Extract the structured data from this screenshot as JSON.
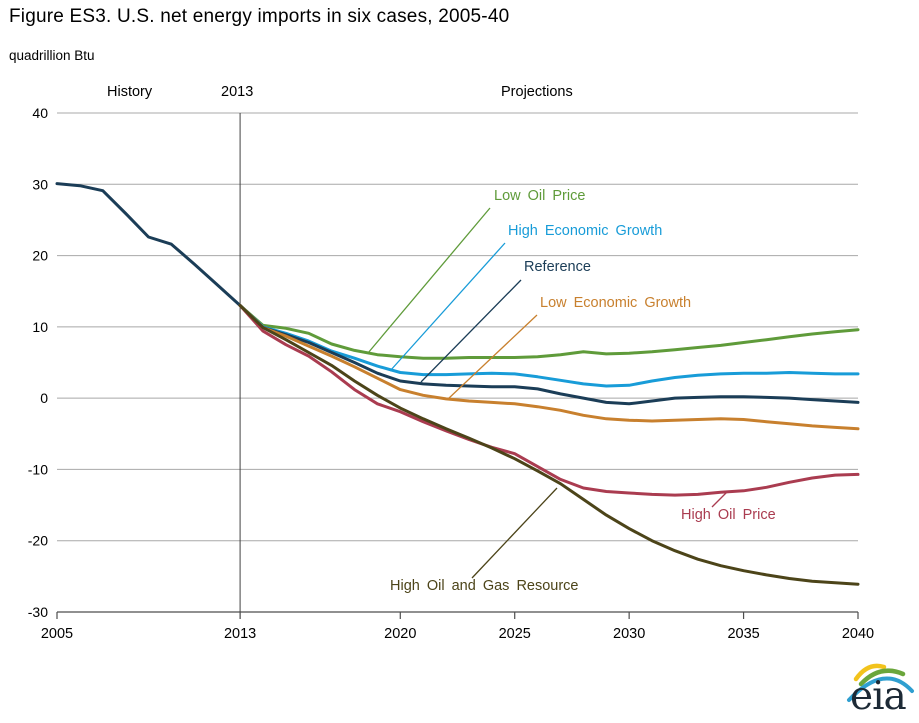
{
  "figure": {
    "title": "Figure ES3. U.S. net energy imports in six cases, 2005-40",
    "unit_label": "quadrillion Btu",
    "region_labels": {
      "history": "History",
      "divider_year": "2013",
      "projections": "Projections"
    },
    "logo_text": "eia"
  },
  "chart_data": {
    "type": "line",
    "title": "Figure ES3. U.S. net energy imports in six cases, 2005-40",
    "xlabel": "",
    "ylabel": "quadrillion Btu",
    "xlim": [
      2005,
      2040
    ],
    "ylim": [
      -30,
      40
    ],
    "x_ticks": [
      2005,
      2013,
      2020,
      2025,
      2030,
      2035,
      2040
    ],
    "y_ticks": [
      40,
      30,
      20,
      10,
      0,
      -10,
      -20,
      -30
    ],
    "grid": "horizontal",
    "divider_year": 2013,
    "divider_label": "2013",
    "region_left_label": "History",
    "region_right_label": "Projections",
    "legend_position": "inline-annotations",
    "history_years": [
      2005,
      2006,
      2007,
      2008,
      2009,
      2010,
      2011,
      2012,
      2013
    ],
    "projection_years": [
      2013,
      2014,
      2015,
      2016,
      2017,
      2018,
      2019,
      2020,
      2021,
      2022,
      2023,
      2024,
      2025,
      2026,
      2027,
      2028,
      2029,
      2030,
      2031,
      2032,
      2033,
      2034,
      2035,
      2036,
      2037,
      2038,
      2039,
      2040
    ],
    "series": [
      {
        "id": "history",
        "name": "History (all cases)",
        "color": "#1b3d57",
        "x_key": "history_years",
        "values": [
          30.1,
          29.8,
          29.1,
          25.9,
          22.6,
          21.6,
          18.8,
          15.9,
          13.0
        ]
      },
      {
        "id": "low-oil-price",
        "name": "Low Oil Price",
        "color": "#5f9b3a",
        "x_key": "projection_years",
        "values": [
          13.0,
          10.2,
          9.8,
          9.1,
          7.6,
          6.7,
          6.1,
          5.8,
          5.6,
          5.6,
          5.7,
          5.7,
          5.7,
          5.8,
          6.1,
          6.5,
          6.2,
          6.3,
          6.5,
          6.8,
          7.1,
          7.4,
          7.8,
          8.2,
          8.6,
          9.0,
          9.3,
          9.6
        ]
      },
      {
        "id": "high-economic-growth",
        "name": "High Economic Growth",
        "color": "#189cd8",
        "x_key": "projection_years",
        "values": [
          13.0,
          10.0,
          9.1,
          8.0,
          6.6,
          5.6,
          4.5,
          3.6,
          3.3,
          3.3,
          3.4,
          3.5,
          3.4,
          3.0,
          2.5,
          2.0,
          1.7,
          1.8,
          2.4,
          2.9,
          3.2,
          3.4,
          3.5,
          3.5,
          3.6,
          3.5,
          3.4,
          3.4
        ]
      },
      {
        "id": "reference",
        "name": "Reference",
        "color": "#1b3d57",
        "x_key": "projection_years",
        "values": [
          13.0,
          9.9,
          8.9,
          7.8,
          6.4,
          5.0,
          3.5,
          2.4,
          2.0,
          1.8,
          1.7,
          1.6,
          1.6,
          1.3,
          0.6,
          0.0,
          -0.6,
          -0.8,
          -0.4,
          0.0,
          0.1,
          0.2,
          0.2,
          0.1,
          0.0,
          -0.2,
          -0.4,
          -0.6
        ]
      },
      {
        "id": "low-economic-growth",
        "name": "Low Economic Growth",
        "color": "#c8802e",
        "x_key": "projection_years",
        "values": [
          13.0,
          9.9,
          8.7,
          7.3,
          5.9,
          4.4,
          2.8,
          1.2,
          0.4,
          -0.1,
          -0.4,
          -0.6,
          -0.8,
          -1.2,
          -1.7,
          -2.4,
          -2.9,
          -3.1,
          -3.2,
          -3.1,
          -3.0,
          -2.9,
          -3.0,
          -3.3,
          -3.6,
          -3.9,
          -4.1,
          -4.3
        ]
      },
      {
        "id": "high-oil-price",
        "name": "High Oil Price",
        "color": "#aa3c50",
        "x_key": "projection_years",
        "values": [
          13.0,
          9.4,
          7.5,
          5.9,
          3.7,
          1.2,
          -0.8,
          -1.9,
          -3.3,
          -4.6,
          -5.8,
          -6.9,
          -7.8,
          -9.6,
          -11.4,
          -12.6,
          -13.1,
          -13.3,
          -13.5,
          -13.6,
          -13.5,
          -13.2,
          -13.0,
          -12.5,
          -11.8,
          -11.2,
          -10.8,
          -10.7
        ]
      },
      {
        "id": "high-oil-and-gas-resource",
        "name": "High Oil and Gas Resource",
        "color": "#4c4419",
        "x_key": "projection_years",
        "values": [
          13.0,
          9.9,
          8.2,
          6.4,
          4.6,
          2.4,
          0.4,
          -1.4,
          -2.9,
          -4.3,
          -5.6,
          -7.0,
          -8.5,
          -10.2,
          -12.0,
          -14.2,
          -16.4,
          -18.3,
          -20.0,
          -21.4,
          -22.6,
          -23.5,
          -24.2,
          -24.8,
          -25.3,
          -25.7,
          -25.9,
          -26.1
        ]
      }
    ]
  }
}
